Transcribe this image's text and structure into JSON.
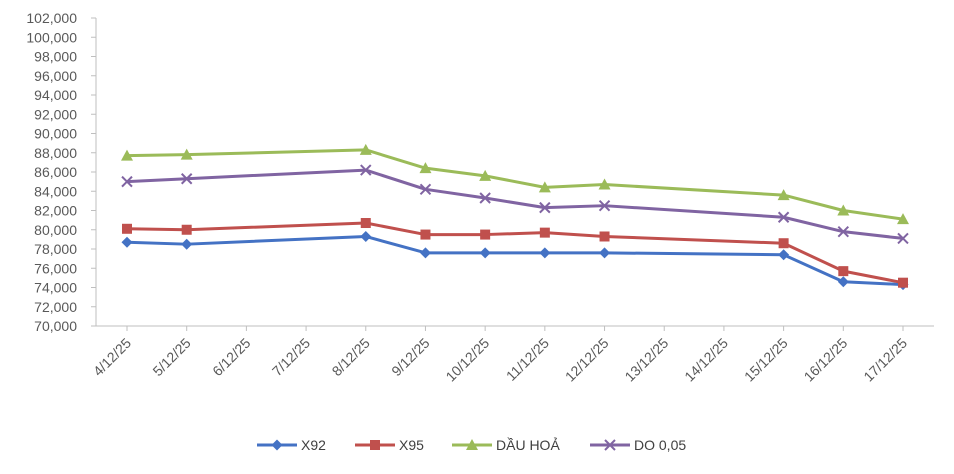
{
  "chart_data": {
    "type": "line",
    "title": "",
    "xlabel": "",
    "ylabel": "",
    "categories": [
      "4/12/25",
      "5/12/25",
      "6/12/25",
      "7/12/25",
      "8/12/25",
      "9/12/25",
      "10/12/25",
      "11/12/25",
      "12/12/25",
      "13/12/25",
      "14/12/25",
      "15/12/25",
      "16/12/25",
      "17/12/25"
    ],
    "ylim": [
      70000,
      102000
    ],
    "yticks": [
      "70,000",
      "72,000",
      "74,000",
      "76,000",
      "78,000",
      "80,000",
      "82,000",
      "84,000",
      "86,000",
      "88,000",
      "90,000",
      "92,000",
      "94,000",
      "96,000",
      "98,000",
      "100,000",
      "102,000"
    ],
    "grid": false,
    "legend_position": "bottom",
    "series": [
      {
        "name": "X92",
        "color": "#4472C4",
        "marker": "diamond",
        "values": [
          78700,
          78500,
          null,
          null,
          79300,
          77600,
          77600,
          77600,
          77600,
          null,
          null,
          77400,
          74600,
          74300
        ]
      },
      {
        "name": "X95",
        "color": "#C0504D",
        "marker": "square",
        "values": [
          80100,
          80000,
          null,
          null,
          80700,
          79500,
          79500,
          79700,
          79300,
          null,
          null,
          78600,
          75700,
          74500
        ]
      },
      {
        "name": "DẦU HOẢ",
        "color": "#9BBB59",
        "marker": "triangle",
        "values": [
          87700,
          87800,
          null,
          null,
          88300,
          86400,
          85600,
          84400,
          84700,
          null,
          null,
          83600,
          82000,
          81100
        ]
      },
      {
        "name": "DO 0,05",
        "color": "#8064A2",
        "marker": "x",
        "values": [
          85000,
          85300,
          null,
          null,
          86200,
          84200,
          83300,
          82300,
          82500,
          null,
          null,
          81300,
          79800,
          79100
        ]
      }
    ]
  }
}
